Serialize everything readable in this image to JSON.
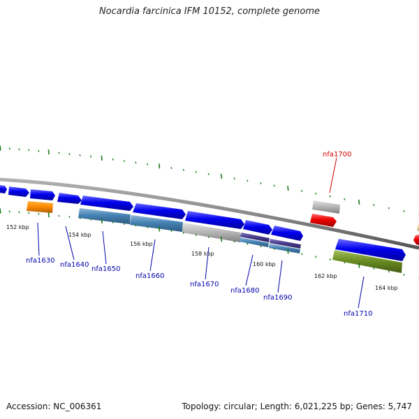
{
  "title": "Nocardia farcinica IFM 10152, complete genome",
  "footer": {
    "accession": "Accession: NC_006361",
    "stats": "Topology: circular; Length: 6,021,225 bp; Genes: 5,747"
  },
  "scale_labels": [
    "152 kbp",
    "154 kbp",
    "156 kbp",
    "158 kbp",
    "160 kbp",
    "162 kbp",
    "164 kbp"
  ],
  "gene_labels": [
    {
      "name": "nfa1630",
      "color": "#0000aa"
    },
    {
      "name": "nfa1640",
      "color": "#0000aa"
    },
    {
      "name": "nfa1650",
      "color": "#0000aa"
    },
    {
      "name": "nfa1660",
      "color": "#0000aa"
    },
    {
      "name": "nfa1670",
      "color": "#0000aa"
    },
    {
      "name": "nfa1680",
      "color": "#0000aa"
    },
    {
      "name": "nfa1690",
      "color": "#0000aa"
    },
    {
      "name": "nfa1700",
      "color": "#cc0000"
    },
    {
      "name": "nfa1710",
      "color": "#0000aa"
    }
  ],
  "colors": {
    "backbone": "#8a8a8a",
    "tick": "#1a7a1a",
    "cds_blue": "#0000ee",
    "orange": "#ff8c00",
    "steelblue": "#4682b4",
    "gray": "#b4b4b4",
    "purple": "#483d8b",
    "red": "#ee0000",
    "olive": "#6b8e23"
  }
}
